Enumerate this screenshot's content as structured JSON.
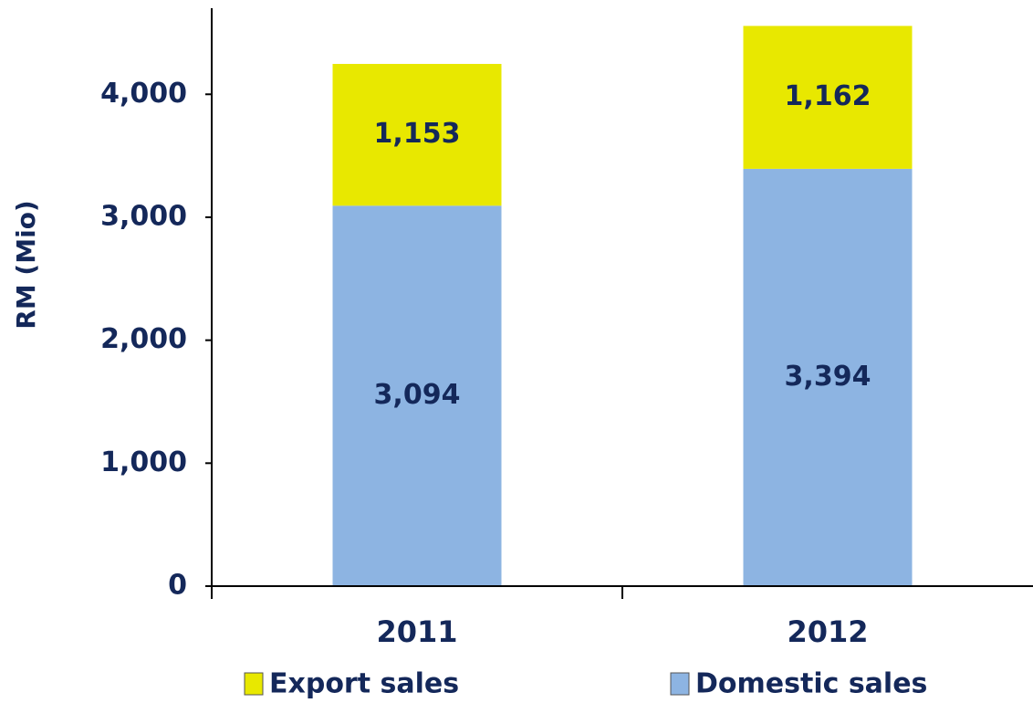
{
  "chart_data": {
    "type": "bar",
    "stacked": true,
    "y_label": "RM (Mio)",
    "categories": [
      "2011",
      "2012"
    ],
    "series": [
      {
        "name": "Domestic sales",
        "color": "#8db4e2",
        "values": [
          3094,
          3394
        ],
        "value_labels": [
          "3,094",
          "3,394"
        ]
      },
      {
        "name": "Export sales",
        "color": "#e8e800",
        "values": [
          1153,
          1162
        ],
        "value_labels": [
          "1,153",
          "1,162"
        ]
      }
    ],
    "ylim": [
      0,
      4700
    ],
    "yticks": [
      0,
      {
        "value": 1000,
        "label": "1,000"
      },
      {
        "value": 2000,
        "label": "2,000"
      },
      {
        "value": 3000,
        "label": "3,000"
      },
      {
        "value": 4000,
        "label": "4,000"
      }
    ],
    "grid": false
  }
}
